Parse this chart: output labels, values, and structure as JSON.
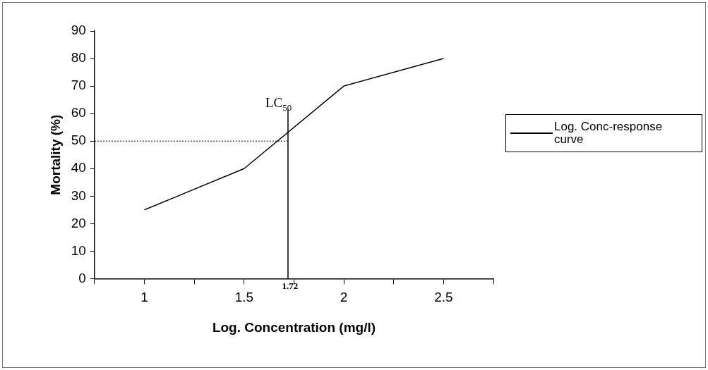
{
  "chart_data": {
    "type": "line",
    "xlabel": "Log. Concentration (mg/l)",
    "ylabel": "Mortality (%)",
    "x": [
      1,
      1.5,
      2,
      2.5
    ],
    "series": [
      {
        "name": "Log. Conc-response curve",
        "color": "#000000",
        "values": [
          25,
          40,
          70,
          80
        ]
      }
    ],
    "xlim": [
      0.75,
      2.75
    ],
    "xticks": [
      {
        "value": 0.75,
        "label": null
      },
      1,
      {
        "value": 1.25,
        "label": null
      },
      1.5,
      {
        "value": 1.75,
        "label": null
      },
      2,
      {
        "value": 2.25,
        "label": null
      },
      2.5,
      {
        "value": 2.75,
        "label": null
      }
    ],
    "ylim": [
      0,
      90
    ],
    "yticks": [
      0,
      10,
      20,
      30,
      40,
      50,
      60,
      70,
      80,
      90
    ],
    "ref_lines": [
      {
        "axis": "x",
        "value": 1.72,
        "label": "LC$_{50}$",
        "color": "#000000",
        "line_style": "solid"
      },
      {
        "axis": "y",
        "value": 50,
        "color": "#000000",
        "line_style": "dotted"
      }
    ],
    "annotations": [
      {
        "text": "1.72",
        "x": 1.72,
        "y": 0
      }
    ],
    "grid": false,
    "legend": "right",
    "marker": "none",
    "line_style": "solid"
  }
}
